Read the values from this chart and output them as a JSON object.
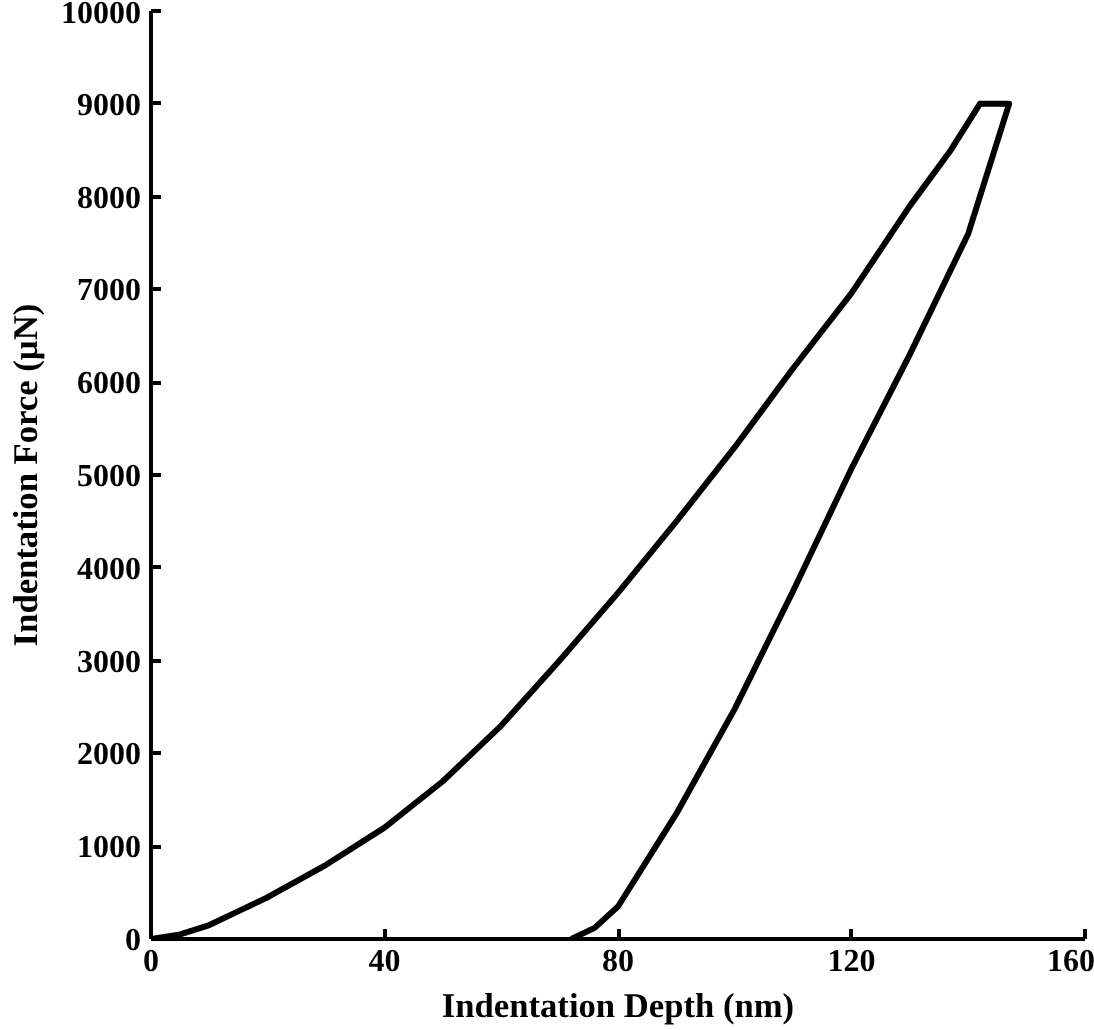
{
  "chart_data": {
    "type": "line",
    "xlabel": "Indentation Depth (nm)",
    "ylabel": "Indentation Force (µN)",
    "xlim": [
      0,
      160
    ],
    "ylim": [
      0,
      10000
    ],
    "xticks": [
      0,
      40,
      80,
      120,
      160
    ],
    "yticks": [
      0,
      1000,
      2000,
      3000,
      4000,
      5000,
      6000,
      7000,
      8000,
      9000,
      10000
    ],
    "grid": false,
    "marker": "none",
    "line_style": "solid",
    "series": [
      {
        "color": "#000000",
        "x": [
          0,
          5,
          10,
          15,
          20,
          30,
          40,
          50,
          60,
          70,
          80,
          90,
          100,
          110,
          120,
          130,
          137,
          142,
          147,
          140,
          130,
          120,
          110,
          100,
          90,
          85,
          80,
          76,
          72
        ],
        "values": [
          0,
          50,
          150,
          300,
          450,
          800,
          1200,
          1700,
          2300,
          3000,
          3730,
          4500,
          5300,
          6150,
          6960,
          7900,
          8500,
          9000,
          9000,
          7600,
          6300,
          5070,
          3750,
          2480,
          1350,
          850,
          350,
          120,
          0
        ]
      }
    ]
  }
}
